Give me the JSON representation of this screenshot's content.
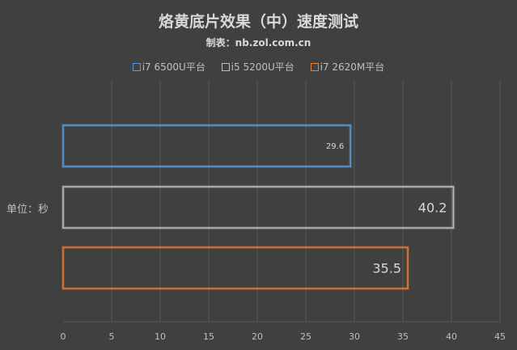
{
  "chart_data": {
    "type": "bar",
    "orientation": "horizontal",
    "title": "烙黄底片效果（中）速度测试",
    "subtitle": "制表：nb.zol.com.cn",
    "ylabel": "单位：秒",
    "categories": [
      "i7 6500U平台",
      "i5 5200U平台",
      "i7 2620M平台"
    ],
    "values": [
      29.6,
      40.2,
      35.5
    ],
    "value_labels": [
      "29.6",
      "40.2",
      "35.5"
    ],
    "colors": [
      "#5b9bd5",
      "#bfbfbf",
      "#ed7d31"
    ],
    "xlim": [
      0,
      45
    ],
    "xticks": [
      "0",
      "5",
      "10",
      "15",
      "20",
      "25",
      "30",
      "35",
      "40",
      "45"
    ],
    "grid": true,
    "legend_position": "top"
  }
}
